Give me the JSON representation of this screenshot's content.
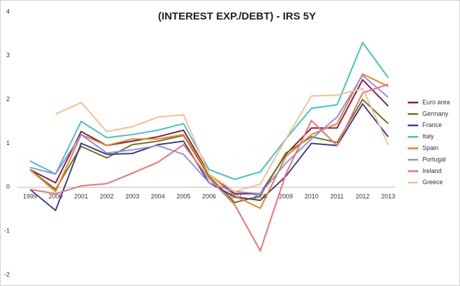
{
  "chart_data": {
    "type": "line",
    "title": "(INTEREST EXP./DEBT) - IRS 5Y",
    "categories": [
      "1999",
      "2000",
      "2001",
      "2002",
      "2003",
      "2004",
      "2005",
      "2006",
      "2007",
      "2008",
      "2009",
      "2010",
      "2011",
      "2012",
      "2013"
    ],
    "ylim": [
      -2,
      4
    ],
    "yticks": [
      -2,
      -1,
      0,
      1,
      2,
      3,
      4
    ],
    "series": [
      {
        "name": "Euro area",
        "color": "#7b2150",
        "values": [
          0.4,
          0.1,
          1.27,
          0.95,
          1.05,
          1.15,
          1.3,
          0.3,
          -0.15,
          -0.15,
          0.75,
          1.35,
          1.35,
          2.45,
          1.85
        ]
      },
      {
        "name": "Germany",
        "color": "#6b7a1a",
        "values": [
          0.4,
          -0.05,
          0.93,
          0.67,
          0.97,
          1.05,
          1.18,
          0.25,
          -0.35,
          -0.2,
          0.78,
          1.15,
          1.02,
          2.0,
          1.45
        ]
      },
      {
        "name": "France",
        "color": "#3f3f8f",
        "values": [
          -0.05,
          -0.53,
          1.0,
          0.75,
          0.77,
          0.97,
          1.05,
          0.1,
          -0.22,
          -0.3,
          0.25,
          1.0,
          0.95,
          1.9,
          1.15
        ]
      },
      {
        "name": "Italy",
        "color": "#40c4c0",
        "values": [
          0.6,
          0.3,
          1.5,
          1.13,
          1.2,
          1.3,
          1.45,
          0.4,
          0.18,
          0.35,
          1.1,
          1.8,
          1.88,
          3.3,
          2.5
        ]
      },
      {
        "name": "Spain",
        "color": "#f08020",
        "values": [
          0.4,
          -0.1,
          1.2,
          0.95,
          1.1,
          1.1,
          1.2,
          0.3,
          -0.2,
          -0.48,
          0.7,
          1.2,
          1.45,
          2.58,
          2.3
        ]
      },
      {
        "name": "Portugal",
        "color": "#8f8fef",
        "values": [
          0.45,
          0.3,
          1.2,
          0.78,
          0.85,
          0.95,
          0.75,
          0.1,
          -0.1,
          -0.15,
          0.55,
          1.1,
          1.6,
          2.55,
          2.05
        ]
      },
      {
        "name": "Ireland",
        "color": "#f07070",
        "values": [
          -0.05,
          -0.15,
          0.03,
          0.08,
          0.32,
          0.57,
          0.97,
          0.2,
          -0.4,
          -1.45,
          0.3,
          1.52,
          0.95,
          2.15,
          2.35
        ]
      },
      {
        "name": "Greece",
        "color": "#f8c090",
        "values": [
          null,
          1.67,
          1.93,
          1.27,
          1.38,
          1.6,
          1.65,
          0.3,
          -0.1,
          0.07,
          1.1,
          2.08,
          2.1,
          2.25,
          0.97
        ]
      }
    ]
  }
}
